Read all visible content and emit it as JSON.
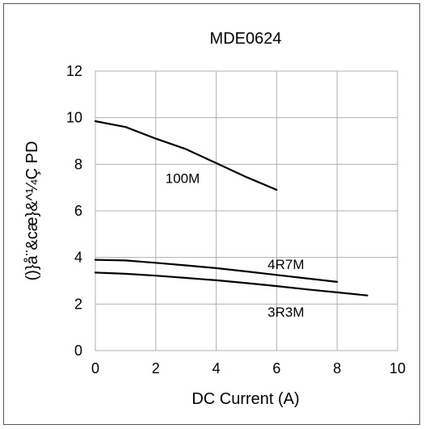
{
  "chart_data": {
    "type": "line",
    "title": "MDE0624",
    "xlabel": "DC Current (A)",
    "ylabel": "()}å¨&cæ}&^¼Ç PD",
    "xlim": [
      0,
      10
    ],
    "ylim": [
      0,
      12
    ],
    "xticks": [
      "0",
      "2",
      "4",
      "6",
      "8",
      "10"
    ],
    "yticks": [
      "0",
      "2",
      "4",
      "6",
      "8",
      "10",
      "12"
    ],
    "grid": true,
    "series": [
      {
        "name": "100M",
        "color": "#000000",
        "x": [
          0,
          1,
          2,
          3,
          4,
          5,
          6
        ],
        "y": [
          9.85,
          9.6,
          9.1,
          8.65,
          8.05,
          7.45,
          6.9
        ]
      },
      {
        "name": "4R7M",
        "color": "#000000",
        "x": [
          0,
          1,
          2,
          3,
          4,
          5,
          6,
          7,
          8
        ],
        "y": [
          3.9,
          3.87,
          3.77,
          3.66,
          3.54,
          3.4,
          3.25,
          3.1,
          2.95
        ]
      },
      {
        "name": "3R3M",
        "color": "#000000",
        "x": [
          0,
          1,
          2,
          3,
          4,
          5,
          6,
          7,
          8,
          9
        ],
        "y": [
          3.35,
          3.3,
          3.22,
          3.12,
          3.02,
          2.9,
          2.77,
          2.63,
          2.5,
          2.37
        ]
      }
    ]
  }
}
